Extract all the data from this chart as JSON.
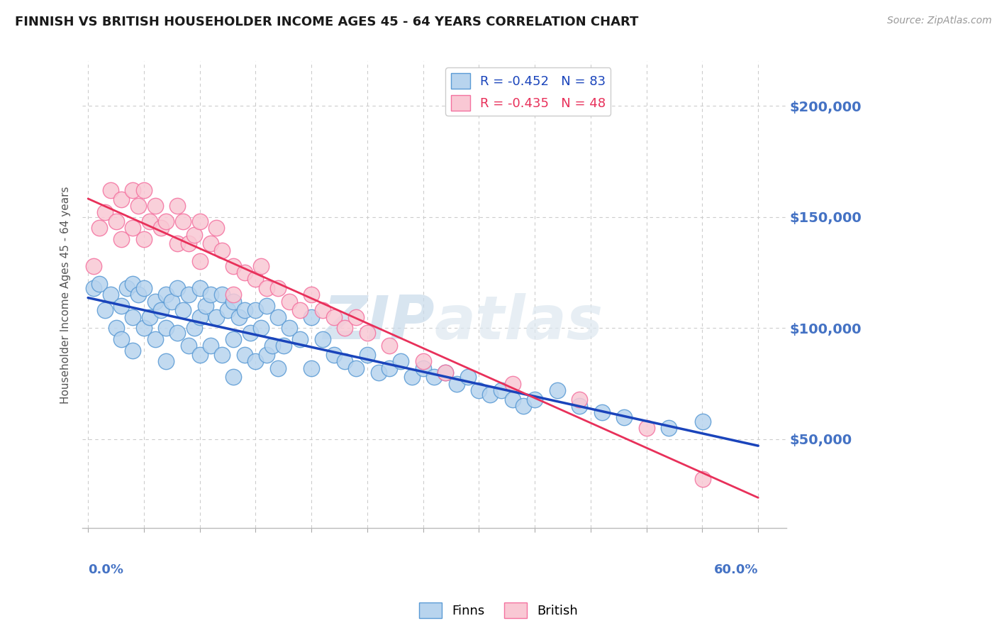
{
  "title": "FINNISH VS BRITISH HOUSEHOLDER INCOME AGES 45 - 64 YEARS CORRELATION CHART",
  "source": "Source: ZipAtlas.com",
  "ylabel": "Householder Income Ages 45 - 64 years",
  "ytick_values": [
    50000,
    100000,
    150000,
    200000
  ],
  "ylim": [
    10000,
    220000
  ],
  "xlim": [
    -0.005,
    0.625
  ],
  "plot_xlim": [
    0.0,
    0.6
  ],
  "legend_label_finns": "Finns",
  "legend_label_british": "British",
  "watermark": "ZIPatlas",
  "finns_color": "#b8d4ee",
  "finns_edge_color": "#5b9bd5",
  "british_color": "#f9c8d4",
  "british_edge_color": "#f472a0",
  "trend_finns_color": "#1a44bb",
  "trend_british_color": "#e8305a",
  "background_color": "#ffffff",
  "grid_color": "#cccccc",
  "finns_x": [
    0.005,
    0.01,
    0.015,
    0.02,
    0.025,
    0.03,
    0.03,
    0.035,
    0.04,
    0.04,
    0.04,
    0.045,
    0.05,
    0.05,
    0.055,
    0.06,
    0.06,
    0.065,
    0.07,
    0.07,
    0.07,
    0.075,
    0.08,
    0.08,
    0.085,
    0.09,
    0.09,
    0.095,
    0.1,
    0.1,
    0.1,
    0.105,
    0.11,
    0.11,
    0.115,
    0.12,
    0.12,
    0.125,
    0.13,
    0.13,
    0.13,
    0.135,
    0.14,
    0.14,
    0.145,
    0.15,
    0.15,
    0.155,
    0.16,
    0.16,
    0.165,
    0.17,
    0.17,
    0.175,
    0.18,
    0.19,
    0.2,
    0.2,
    0.21,
    0.22,
    0.23,
    0.24,
    0.25,
    0.26,
    0.27,
    0.28,
    0.29,
    0.3,
    0.31,
    0.32,
    0.33,
    0.34,
    0.35,
    0.36,
    0.37,
    0.38,
    0.39,
    0.4,
    0.42,
    0.44,
    0.46,
    0.48,
    0.52,
    0.55
  ],
  "finns_y": [
    118000,
    120000,
    108000,
    115000,
    100000,
    110000,
    95000,
    118000,
    120000,
    105000,
    90000,
    115000,
    118000,
    100000,
    105000,
    112000,
    95000,
    108000,
    115000,
    100000,
    85000,
    112000,
    118000,
    98000,
    108000,
    115000,
    92000,
    100000,
    118000,
    105000,
    88000,
    110000,
    115000,
    92000,
    105000,
    115000,
    88000,
    108000,
    112000,
    95000,
    78000,
    105000,
    108000,
    88000,
    98000,
    108000,
    85000,
    100000,
    110000,
    88000,
    92000,
    105000,
    82000,
    92000,
    100000,
    95000,
    105000,
    82000,
    95000,
    88000,
    85000,
    82000,
    88000,
    80000,
    82000,
    85000,
    78000,
    82000,
    78000,
    80000,
    75000,
    78000,
    72000,
    70000,
    72000,
    68000,
    65000,
    68000,
    72000,
    65000,
    62000,
    60000,
    55000,
    58000
  ],
  "british_x": [
    0.005,
    0.01,
    0.015,
    0.02,
    0.025,
    0.03,
    0.03,
    0.04,
    0.04,
    0.045,
    0.05,
    0.05,
    0.055,
    0.06,
    0.065,
    0.07,
    0.08,
    0.08,
    0.085,
    0.09,
    0.095,
    0.1,
    0.1,
    0.11,
    0.115,
    0.12,
    0.13,
    0.13,
    0.14,
    0.15,
    0.155,
    0.16,
    0.17,
    0.18,
    0.19,
    0.2,
    0.21,
    0.22,
    0.23,
    0.24,
    0.25,
    0.27,
    0.3,
    0.32,
    0.38,
    0.44,
    0.5,
    0.55
  ],
  "british_y": [
    128000,
    145000,
    152000,
    162000,
    148000,
    158000,
    140000,
    162000,
    145000,
    155000,
    162000,
    140000,
    148000,
    155000,
    145000,
    148000,
    155000,
    138000,
    148000,
    138000,
    142000,
    148000,
    130000,
    138000,
    145000,
    135000,
    128000,
    115000,
    125000,
    122000,
    128000,
    118000,
    118000,
    112000,
    108000,
    115000,
    108000,
    105000,
    100000,
    105000,
    98000,
    92000,
    85000,
    80000,
    75000,
    68000,
    55000,
    32000
  ]
}
